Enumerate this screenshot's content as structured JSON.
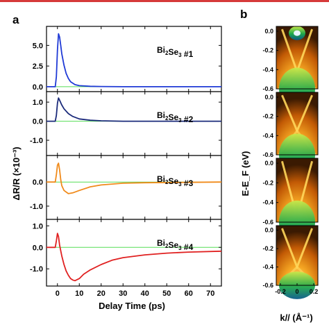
{
  "panel_a_label": "a",
  "panel_b_label": "b",
  "colors": {
    "top_bar": "#d63a3a",
    "zero_line": "#55dd55"
  },
  "chart_data": [
    {
      "type": "line",
      "panel": "a",
      "xlabel": "Delay Time (ps)",
      "ylabel": "ΔR/R (×10⁻³)",
      "xlim": [
        -5,
        75
      ],
      "x_ticks": [
        "0",
        "10",
        "20",
        "30",
        "40",
        "50",
        "60",
        "70"
      ],
      "subplots": [
        {
          "name": "Bi2Se3 #1",
          "label_main": "Bi",
          "label_s1": "2",
          "label_mid": "Se",
          "label_s2": "3",
          "label_tail": " #1",
          "color": "#1f3ad6",
          "ylim": [
            -0.6,
            7.3
          ],
          "y_ticks": [
            "0.0",
            "2.5",
            "5.0"
          ],
          "points": [
            [
              -5,
              0
            ],
            [
              -1,
              0
            ],
            [
              -0.5,
              1.2
            ],
            [
              0,
              4.5
            ],
            [
              0.5,
              6.4
            ],
            [
              1,
              6.0
            ],
            [
              1.5,
              5.0
            ],
            [
              2,
              4.0
            ],
            [
              3,
              2.6
            ],
            [
              4,
              1.6
            ],
            [
              5,
              1.0
            ],
            [
              6,
              0.6
            ],
            [
              8,
              0.25
            ],
            [
              10,
              0.12
            ],
            [
              15,
              0.05
            ],
            [
              20,
              0.02
            ],
            [
              30,
              0
            ],
            [
              75,
              0
            ]
          ]
        },
        {
          "name": "Bi2Se3 #2",
          "label_main": "Bi",
          "label_s1": "2",
          "label_mid": "Se",
          "label_s2": "3",
          "label_tail": " #2",
          "color": "#1a2a7a",
          "ylim": [
            -1.8,
            1.55
          ],
          "y_ticks": [
            "1.0",
            "0.0",
            "-1.0"
          ],
          "points": [
            [
              -5,
              0
            ],
            [
              -1,
              0
            ],
            [
              -0.5,
              0.3
            ],
            [
              0,
              0.95
            ],
            [
              0.5,
              1.22
            ],
            [
              1,
              1.1
            ],
            [
              2,
              0.85
            ],
            [
              3,
              0.65
            ],
            [
              5,
              0.4
            ],
            [
              7,
              0.25
            ],
            [
              10,
              0.12
            ],
            [
              15,
              0.05
            ],
            [
              20,
              0.02
            ],
            [
              30,
              0
            ],
            [
              75,
              0
            ]
          ]
        },
        {
          "name": "Bi2Se3 #3",
          "label_main": "Bi",
          "label_s1": "2",
          "label_mid": "Se",
          "label_s2": "3",
          "label_tail": " #3",
          "color": "#f08a1a",
          "ylim": [
            -1.55,
            1.1
          ],
          "y_ticks": [
            "0.0",
            "-1.0"
          ],
          "points": [
            [
              -5,
              0
            ],
            [
              -1,
              0
            ],
            [
              -0.5,
              0.3
            ],
            [
              0,
              0.7
            ],
            [
              0.5,
              0.78
            ],
            [
              1,
              0.5
            ],
            [
              1.5,
              0.1
            ],
            [
              2,
              -0.15
            ],
            [
              3,
              -0.35
            ],
            [
              5,
              -0.48
            ],
            [
              7,
              -0.45
            ],
            [
              10,
              -0.35
            ],
            [
              15,
              -0.2
            ],
            [
              20,
              -0.12
            ],
            [
              30,
              -0.05
            ],
            [
              40,
              -0.03
            ],
            [
              75,
              0
            ]
          ]
        },
        {
          "name": "Bi2Se3 #4",
          "label_main": "Bi",
          "label_s1": "2",
          "label_mid": "Se",
          "label_s2": "3",
          "label_tail": " #4",
          "color": "#e02020",
          "ylim": [
            -1.8,
            1.3
          ],
          "y_ticks": [
            "1.0",
            "0.0",
            "-1.0"
          ],
          "points": [
            [
              -5,
              0
            ],
            [
              -1,
              0
            ],
            [
              -0.5,
              0.3
            ],
            [
              0,
              0.65
            ],
            [
              0.5,
              0.5
            ],
            [
              1,
              0.1
            ],
            [
              2,
              -0.4
            ],
            [
              3,
              -0.8
            ],
            [
              4,
              -1.1
            ],
            [
              5,
              -1.3
            ],
            [
              6,
              -1.45
            ],
            [
              7,
              -1.52
            ],
            [
              8,
              -1.55
            ],
            [
              10,
              -1.45
            ],
            [
              12,
              -1.25
            ],
            [
              15,
              -1.05
            ],
            [
              20,
              -0.8
            ],
            [
              25,
              -0.6
            ],
            [
              30,
              -0.48
            ],
            [
              40,
              -0.35
            ],
            [
              50,
              -0.27
            ],
            [
              60,
              -0.22
            ],
            [
              75,
              -0.18
            ]
          ]
        }
      ]
    },
    {
      "type": "heatmap",
      "panel": "b",
      "xlabel": "k// (Å⁻¹)",
      "ylabel": "E-E_F (eV)",
      "xlim": [
        -0.25,
        0.25
      ],
      "ylim": [
        -0.6,
        0.05
      ],
      "x_ticks": [
        "-0.2",
        "0",
        "0.2"
      ],
      "y_ticks": [
        "0.0",
        "-0.2",
        "-0.4",
        "-0.6"
      ],
      "subplots": [
        "Bi2Se3 #1",
        "Bi2Se3 #2",
        "Bi2Se3 #3",
        "Bi2Se3 #4"
      ]
    }
  ]
}
